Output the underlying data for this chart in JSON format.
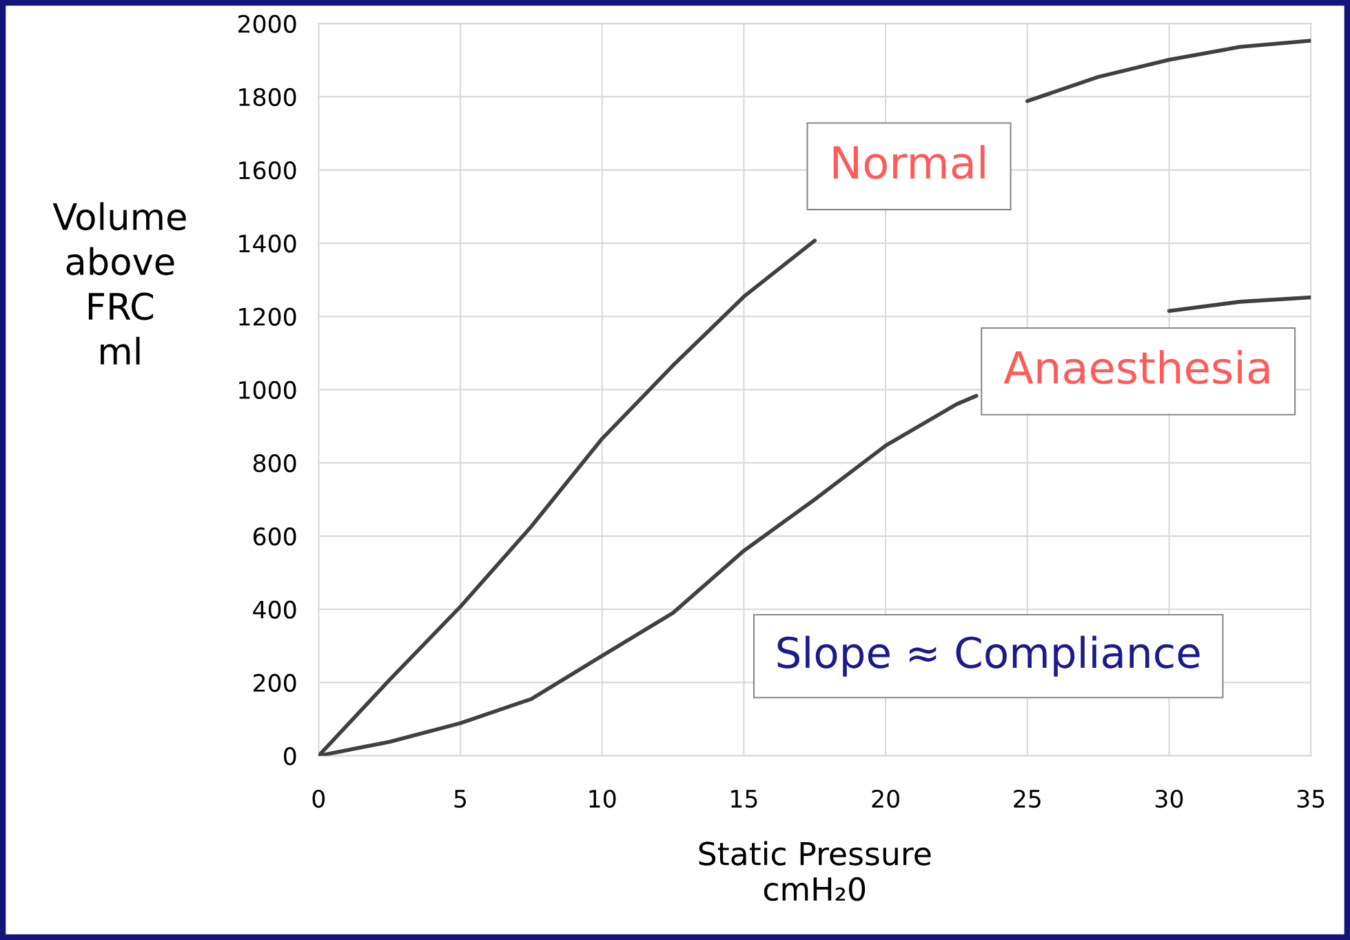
{
  "chart_data": {
    "type": "line",
    "x": [
      0,
      2.5,
      5,
      7.5,
      10,
      12.5,
      15,
      17.5,
      20,
      22.5,
      23.2,
      25,
      27.5,
      30,
      32.5,
      35
    ],
    "series": [
      {
        "name": "Normal",
        "color": "#404040",
        "values": [
          0,
          207,
          407,
          626,
          866,
          1066,
          1254,
          1407,
          null,
          null,
          null,
          1788,
          1854,
          1901,
          1936,
          1953
        ]
      },
      {
        "name": "Anaesthesia",
        "color": "#404040",
        "values": [
          0,
          38,
          89,
          155,
          273,
          390,
          560,
          700,
          847,
          960,
          983,
          null,
          null,
          1215,
          1240,
          1252
        ]
      }
    ],
    "xlabel": "Static Pressure\ncmH₂0",
    "ylabel": "Volume\nabove\nFRC\nml",
    "annotations": [
      "Slope ≈ Compliance"
    ],
    "xlim": [
      0,
      35
    ],
    "ylim": [
      0,
      2000
    ],
    "xticks": [
      0,
      5,
      10,
      15,
      20,
      25,
      30,
      35
    ],
    "yticks": [
      0,
      200,
      400,
      600,
      800,
      1000,
      1200,
      1400,
      1600,
      1800,
      2000
    ],
    "grid": true,
    "legend": false,
    "marker": "none",
    "line_style": "solid"
  }
}
